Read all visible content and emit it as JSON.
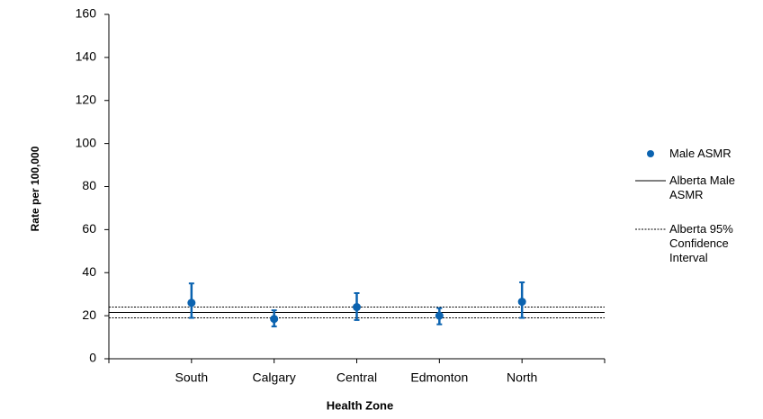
{
  "chart_data": {
    "type": "errorbar",
    "x_label": "Health Zone",
    "y_label": "Rate per 100,000",
    "categories": [
      "South",
      "Calgary",
      "Central",
      "Edmonton",
      "North"
    ],
    "series": [
      {
        "name": "Male ASMR",
        "color": "#0b63b0",
        "values": [
          26,
          18.5,
          24,
          20,
          26.5
        ],
        "lower": [
          19,
          15,
          18,
          16,
          19
        ],
        "upper": [
          35,
          22.5,
          30.5,
          23.5,
          35.5
        ]
      }
    ],
    "reference_lines": [
      {
        "name": "Alberta Male ASMR",
        "style": "solid",
        "value": 21.5
      },
      {
        "name": "Alberta 95% Confidence Interval",
        "style": "dotted",
        "values": [
          19,
          24
        ]
      }
    ],
    "ylim": [
      0,
      160
    ],
    "yticks": [
      0,
      20,
      40,
      60,
      80,
      100,
      120,
      140,
      160
    ]
  }
}
